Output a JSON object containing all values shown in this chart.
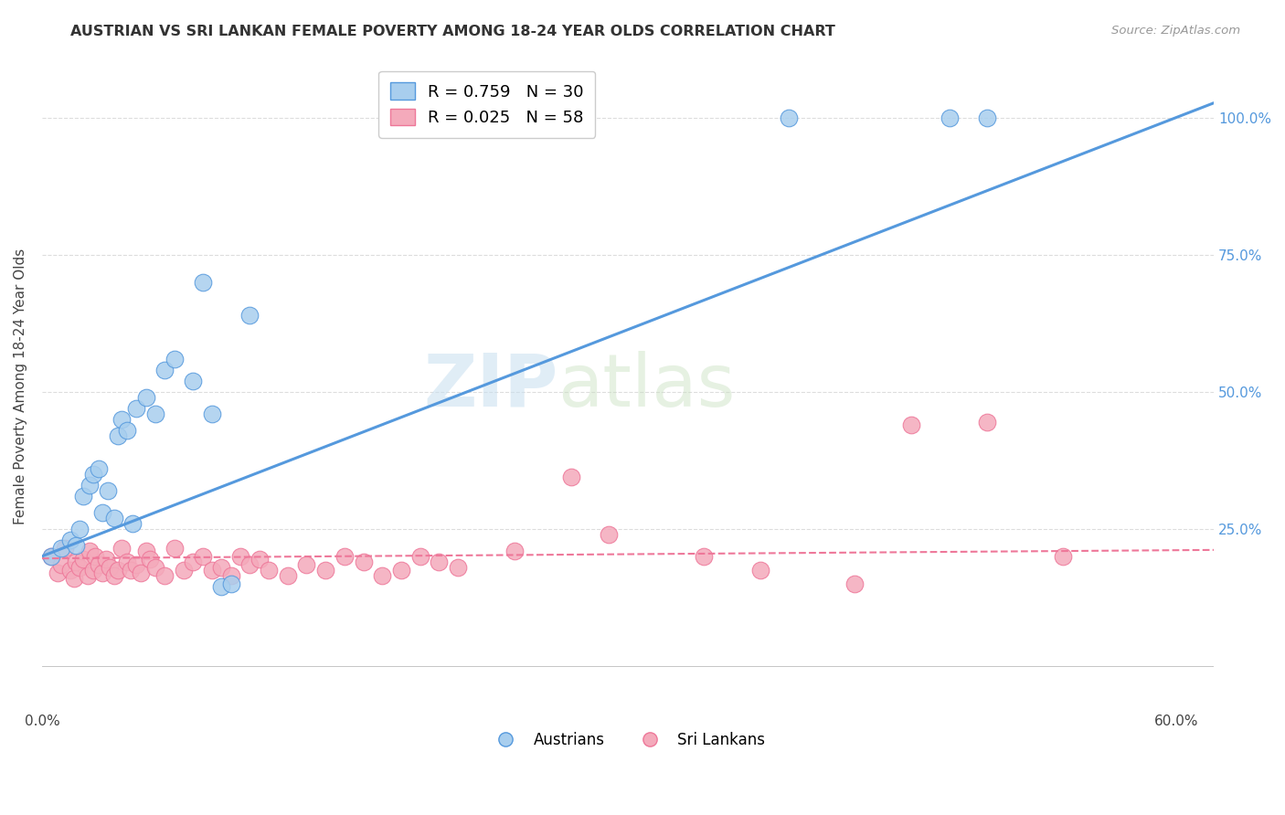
{
  "title": "AUSTRIAN VS SRI LANKAN FEMALE POVERTY AMONG 18-24 YEAR OLDS CORRELATION CHART",
  "source": "Source: ZipAtlas.com",
  "ylabel": "Female Poverty Among 18-24 Year Olds",
  "legend_blue_label": "R = 0.759   N = 30",
  "legend_pink_label": "R = 0.025   N = 58",
  "legend_blue_marker_label": "Austrians",
  "legend_pink_marker_label": "Sri Lankans",
  "blue_color": "#A8CEEE",
  "pink_color": "#F4AABB",
  "blue_line_color": "#5599DD",
  "pink_line_color": "#EE7799",
  "background_color": "#FFFFFF",
  "grid_color": "#DDDDDD",
  "xlim": [
    0.0,
    0.62
  ],
  "ylim": [
    -0.08,
    1.1
  ],
  "yticks": [
    0.0,
    0.25,
    0.5,
    0.75,
    1.0
  ],
  "austrians_x": [
    0.005,
    0.01,
    0.015,
    0.018,
    0.02,
    0.022,
    0.025,
    0.027,
    0.03,
    0.032,
    0.035,
    0.038,
    0.04,
    0.042,
    0.045,
    0.048,
    0.05,
    0.055,
    0.06,
    0.065,
    0.07,
    0.08,
    0.085,
    0.09,
    0.095,
    0.1,
    0.11,
    0.395,
    0.48,
    0.5
  ],
  "austrians_y": [
    0.2,
    0.215,
    0.23,
    0.22,
    0.25,
    0.31,
    0.33,
    0.35,
    0.36,
    0.28,
    0.32,
    0.27,
    0.42,
    0.45,
    0.43,
    0.26,
    0.47,
    0.49,
    0.46,
    0.54,
    0.56,
    0.52,
    0.7,
    0.46,
    0.145,
    0.15,
    0.64,
    1.0,
    1.0,
    1.0
  ],
  "srilankans_x": [
    0.005,
    0.008,
    0.01,
    0.012,
    0.015,
    0.017,
    0.018,
    0.02,
    0.022,
    0.024,
    0.025,
    0.027,
    0.028,
    0.03,
    0.032,
    0.034,
    0.036,
    0.038,
    0.04,
    0.042,
    0.045,
    0.047,
    0.05,
    0.052,
    0.055,
    0.057,
    0.06,
    0.065,
    0.07,
    0.075,
    0.08,
    0.085,
    0.09,
    0.095,
    0.1,
    0.105,
    0.11,
    0.115,
    0.12,
    0.13,
    0.14,
    0.15,
    0.16,
    0.17,
    0.18,
    0.19,
    0.2,
    0.21,
    0.22,
    0.25,
    0.28,
    0.3,
    0.35,
    0.38,
    0.43,
    0.46,
    0.5,
    0.54
  ],
  "srilankans_y": [
    0.2,
    0.17,
    0.185,
    0.215,
    0.175,
    0.16,
    0.19,
    0.18,
    0.195,
    0.165,
    0.21,
    0.175,
    0.2,
    0.185,
    0.17,
    0.195,
    0.18,
    0.165,
    0.175,
    0.215,
    0.19,
    0.175,
    0.185,
    0.17,
    0.21,
    0.195,
    0.18,
    0.165,
    0.215,
    0.175,
    0.19,
    0.2,
    0.175,
    0.18,
    0.165,
    0.2,
    0.185,
    0.195,
    0.175,
    0.165,
    0.185,
    0.175,
    0.2,
    0.19,
    0.165,
    0.175,
    0.2,
    0.19,
    0.18,
    0.21,
    0.345,
    0.24,
    0.2,
    0.175,
    0.15,
    0.44,
    0.445,
    0.2
  ]
}
